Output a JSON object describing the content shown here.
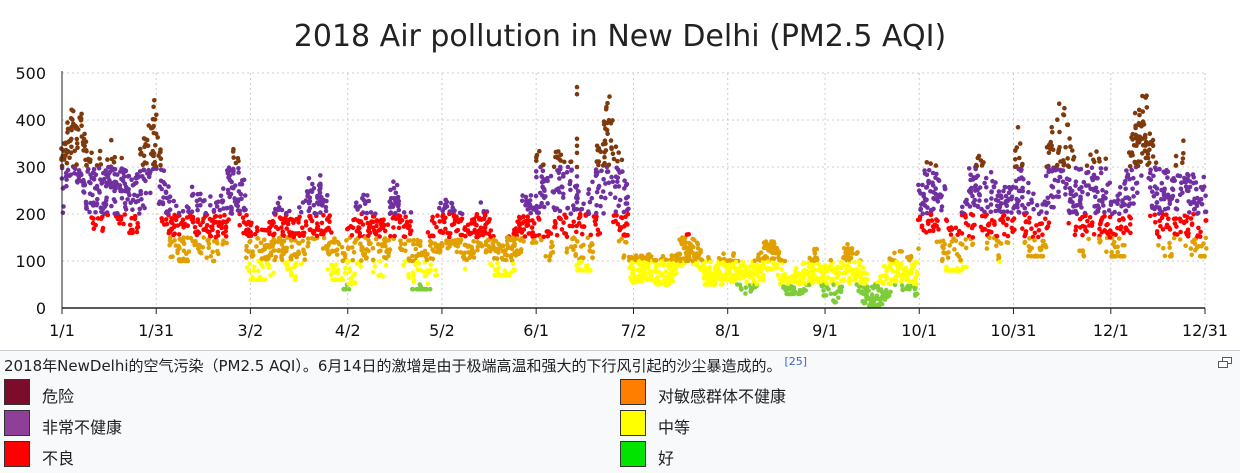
{
  "chart_data": {
    "type": "scatter",
    "title": "2018 Air pollution in New Delhi (PM2.5 AQI)",
    "xlabel": "",
    "ylabel": "",
    "x_range": [
      "2018-01-01",
      "2018-12-31"
    ],
    "x_tick_labels": [
      "1/1",
      "1/31",
      "3/2",
      "4/2",
      "5/2",
      "6/1",
      "7/2",
      "8/1",
      "9/1",
      "10/1",
      "10/31",
      "12/1",
      "12/31"
    ],
    "y_tick_labels": [
      "0",
      "100",
      "200",
      "300",
      "400",
      "500"
    ],
    "ylim": [
      0,
      500
    ],
    "grid": true,
    "color_bands": [
      {
        "name": "危险",
        "min": 300,
        "max": 500,
        "color": "#7e3a0c"
      },
      {
        "name": "非常不健康",
        "min": 200,
        "max": 300,
        "color": "#7030a0"
      },
      {
        "name": "不良",
        "min": 150,
        "max": 200,
        "color": "#ff0000"
      },
      {
        "name": "对敏感群体不健康",
        "min": 100,
        "max": 150,
        "color": "#e0a000"
      },
      {
        "name": "中等",
        "min": 50,
        "max": 100,
        "color": "#ffff00"
      },
      {
        "name": "好",
        "min": 0,
        "max": 50,
        "color": "#7fcc3a"
      }
    ],
    "daily_range_approx": [
      {
        "month": "Jan",
        "min": 160,
        "max": 460
      },
      {
        "month": "Feb",
        "min": 100,
        "max": 360
      },
      {
        "month": "Mar",
        "min": 60,
        "max": 320
      },
      {
        "month": "Apr",
        "min": 40,
        "max": 320
      },
      {
        "month": "May",
        "min": 70,
        "max": 270
      },
      {
        "month": "Jun",
        "min": 80,
        "max": 470
      },
      {
        "month": "Jul",
        "min": 50,
        "max": 170
      },
      {
        "month": "Aug",
        "min": 30,
        "max": 160
      },
      {
        "month": "Sep",
        "min": 5,
        "max": 160
      },
      {
        "month": "Oct",
        "min": 80,
        "max": 390
      },
      {
        "month": "Nov",
        "min": 110,
        "max": 490
      },
      {
        "month": "Dec",
        "min": 110,
        "max": 480
      }
    ]
  },
  "caption": {
    "text": "2018年NewDelhi的空气污染（PM2.5 AQI）。6月14日的激增是由于极端高温和强大的下行风引起的沙尘暴造成的。",
    "ref": "[25]"
  },
  "legend": [
    {
      "label": "危险",
      "color": "#7b0c2c"
    },
    {
      "label": "对敏感群体不健康",
      "color": "#ff7e00"
    },
    {
      "label": "非常不健康",
      "color": "#8f3f97"
    },
    {
      "label": "中等",
      "color": "#ffff00"
    },
    {
      "label": "不良",
      "color": "#ff0000"
    },
    {
      "label": "好",
      "color": "#00e400"
    }
  ],
  "icons": {
    "enlarge": "enlarge-icon"
  }
}
